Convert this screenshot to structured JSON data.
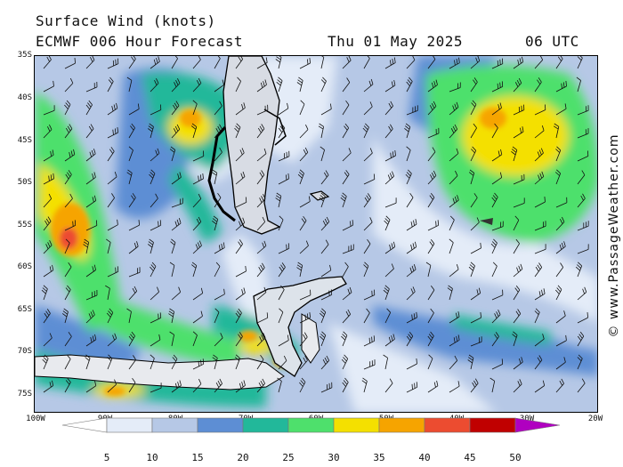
{
  "header": {
    "title": "Surface Wind (knots)",
    "model": "ECMWF 006 Hour Forecast",
    "date": "Thu 01 May 2025",
    "time": "06 UTC"
  },
  "latitude_labels": [
    "35S",
    "40S",
    "45S",
    "50S",
    "55S",
    "60S",
    "65S",
    "70S",
    "75S"
  ],
  "longitude_labels": [
    "100W",
    "90W",
    "80W",
    "70W",
    "60W",
    "50W",
    "40W",
    "30W",
    "20W"
  ],
  "legend": {
    "ticks": [
      "5",
      "10",
      "15",
      "20",
      "25",
      "30",
      "35",
      "40",
      "45",
      "50"
    ],
    "colors": [
      "#e4ecf8",
      "#b6c8e6",
      "#5d8ed4",
      "#22b89a",
      "#4ee06c",
      "#f4e000",
      "#f6a400",
      "#ec4c30",
      "#c00000",
      "#b000c0"
    ]
  },
  "credit": "© www.PassageWeather.com"
}
